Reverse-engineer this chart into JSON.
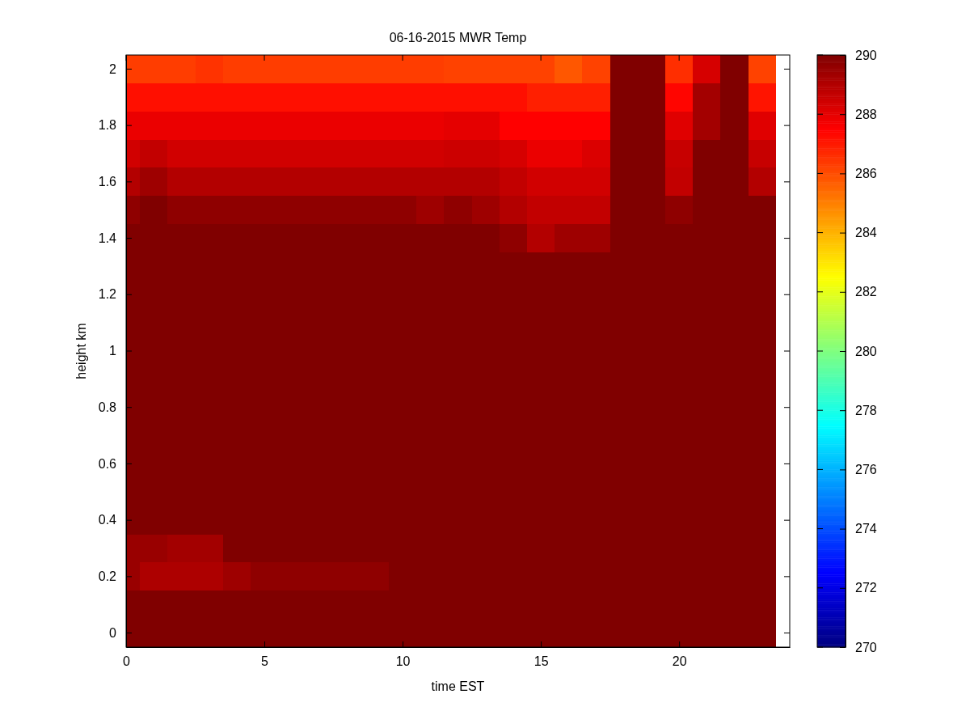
{
  "chart_data": {
    "type": "heatmap",
    "title": "06-16-2015 MWR Temp",
    "xlabel": "time EST",
    "ylabel": "height km",
    "x": [
      0,
      1,
      2,
      3,
      4,
      5,
      6,
      7,
      8,
      9,
      10,
      11,
      12,
      13,
      14,
      15,
      16,
      17,
      18,
      19,
      20,
      21,
      22,
      23
    ],
    "y_categories": [
      "2",
      null,
      "1.8",
      null,
      "1.6",
      null,
      "1.4",
      null,
      "1.2",
      null,
      "1",
      null,
      "0.8",
      null,
      "0.6",
      null,
      "0.4",
      null,
      "0.2",
      null,
      "0"
    ],
    "xlim": [
      0,
      24
    ],
    "xticks": [
      0,
      5,
      10,
      15,
      20
    ],
    "clim": [
      270,
      290
    ],
    "cticks": [
      270,
      272,
      274,
      276,
      278,
      280,
      282,
      284,
      286,
      288,
      290
    ],
    "cells": [
      [
        286.3,
        286.3,
        286.3,
        286.5,
        286.3,
        286.3,
        286.3,
        286.3,
        286.3,
        286.3,
        286.3,
        286.3,
        286.2,
        286.2,
        286.2,
        286.2,
        285.8,
        286.2,
        290,
        290,
        286.6,
        288.3,
        290,
        286.2
      ],
      [
        287.2,
        287.2,
        287.2,
        287.2,
        287.2,
        287.2,
        287.2,
        287.2,
        287.2,
        287.2,
        287.2,
        287.2,
        287.2,
        287.2,
        287.2,
        286.9,
        286.9,
        286.9,
        290,
        290,
        287.4,
        289.3,
        290,
        287.1
      ],
      [
        287.9,
        287.9,
        287.9,
        287.9,
        287.9,
        287.9,
        287.9,
        287.9,
        287.9,
        287.9,
        287.9,
        287.9,
        288.0,
        288.0,
        287.5,
        287.5,
        287.5,
        287.5,
        290,
        290,
        288.1,
        289.3,
        290,
        288.1
      ],
      [
        288.4,
        288.7,
        288.4,
        288.4,
        288.4,
        288.4,
        288.4,
        288.4,
        288.4,
        288.4,
        288.4,
        288.4,
        288.5,
        288.5,
        288.3,
        287.9,
        287.9,
        288.2,
        290,
        290,
        288.6,
        290,
        290,
        288.6
      ],
      [
        289.0,
        289.4,
        289.0,
        289.0,
        289.0,
        289.0,
        289.0,
        289.0,
        289.0,
        289.0,
        289.0,
        289.0,
        289.0,
        289.0,
        288.7,
        288.4,
        288.4,
        288.4,
        290,
        290,
        288.7,
        290,
        290,
        289.0
      ],
      [
        289.7,
        290,
        289.7,
        289.7,
        289.7,
        289.7,
        289.7,
        289.7,
        289.7,
        289.7,
        289.7,
        289.4,
        289.7,
        289.4,
        289.0,
        288.7,
        288.7,
        288.7,
        290,
        290,
        289.7,
        290,
        290,
        290
      ],
      [
        290,
        290,
        290,
        290,
        290,
        290,
        290,
        290,
        290,
        290,
        290,
        290,
        290,
        290,
        289.7,
        289.0,
        289.4,
        289.4,
        290,
        290,
        290,
        290,
        290,
        290
      ],
      [
        290,
        290,
        290,
        290,
        290,
        290,
        290,
        290,
        290,
        290,
        290,
        290,
        290,
        290,
        290,
        290,
        290,
        290,
        290,
        290,
        290,
        290,
        290,
        290
      ],
      [
        290,
        290,
        290,
        290,
        290,
        290,
        290,
        290,
        290,
        290,
        290,
        290,
        290,
        290,
        290,
        290,
        290,
        290,
        290,
        290,
        290,
        290,
        290,
        290
      ],
      [
        290,
        290,
        290,
        290,
        290,
        290,
        290,
        290,
        290,
        290,
        290,
        290,
        290,
        290,
        290,
        290,
        290,
        290,
        290,
        290,
        290,
        290,
        290,
        290
      ],
      [
        290,
        290,
        290,
        290,
        290,
        290,
        290,
        290,
        290,
        290,
        290,
        290,
        290,
        290,
        290,
        290,
        290,
        290,
        290,
        290,
        290,
        290,
        290,
        290
      ],
      [
        290,
        290,
        290,
        290,
        290,
        290,
        290,
        290,
        290,
        290,
        290,
        290,
        290,
        290,
        290,
        290,
        290,
        290,
        290,
        290,
        290,
        290,
        290,
        290
      ],
      [
        290,
        290,
        290,
        290,
        290,
        290,
        290,
        290,
        290,
        290,
        290,
        290,
        290,
        290,
        290,
        290,
        290,
        290,
        290,
        290,
        290,
        290,
        290,
        290
      ],
      [
        290,
        290,
        290,
        290,
        290,
        290,
        290,
        290,
        290,
        290,
        290,
        290,
        290,
        290,
        290,
        290,
        290,
        290,
        290,
        290,
        290,
        290,
        290,
        290
      ],
      [
        290,
        290,
        290,
        290,
        290,
        290,
        290,
        290,
        290,
        290,
        290,
        290,
        290,
        290,
        290,
        290,
        290,
        290,
        290,
        290,
        290,
        290,
        290,
        290
      ],
      [
        290,
        290,
        290,
        290,
        290,
        290,
        290,
        290,
        290,
        290,
        290,
        290,
        290,
        290,
        290,
        290,
        290,
        290,
        290,
        290,
        290,
        290,
        290,
        290
      ],
      [
        290,
        290,
        290,
        290,
        290,
        290,
        290,
        290,
        290,
        290,
        290,
        290,
        290,
        290,
        290,
        290,
        290,
        290,
        290,
        290,
        290,
        290,
        290,
        290
      ],
      [
        289.5,
        289.5,
        289.3,
        289.3,
        290,
        290,
        290,
        290,
        290,
        290,
        290,
        290,
        290,
        290,
        290,
        290,
        290,
        290,
        290,
        290,
        290,
        290,
        290,
        290
      ],
      [
        289.5,
        289.1,
        289.1,
        289.1,
        289.4,
        289.7,
        289.7,
        289.7,
        289.7,
        289.7,
        290,
        290,
        290,
        290,
        290,
        290,
        290,
        290,
        290,
        290,
        290,
        290,
        290,
        290
      ],
      [
        290,
        290,
        290,
        290,
        290,
        290,
        290,
        290,
        290,
        290,
        290,
        290,
        290,
        290,
        290,
        290,
        290,
        290,
        290,
        290,
        290,
        290,
        290,
        290
      ],
      [
        290,
        290,
        290,
        290,
        290,
        290,
        290,
        290,
        290,
        290,
        290,
        290,
        290,
        290,
        290,
        290,
        290,
        290,
        290,
        290,
        290,
        290,
        290,
        290
      ]
    ]
  }
}
